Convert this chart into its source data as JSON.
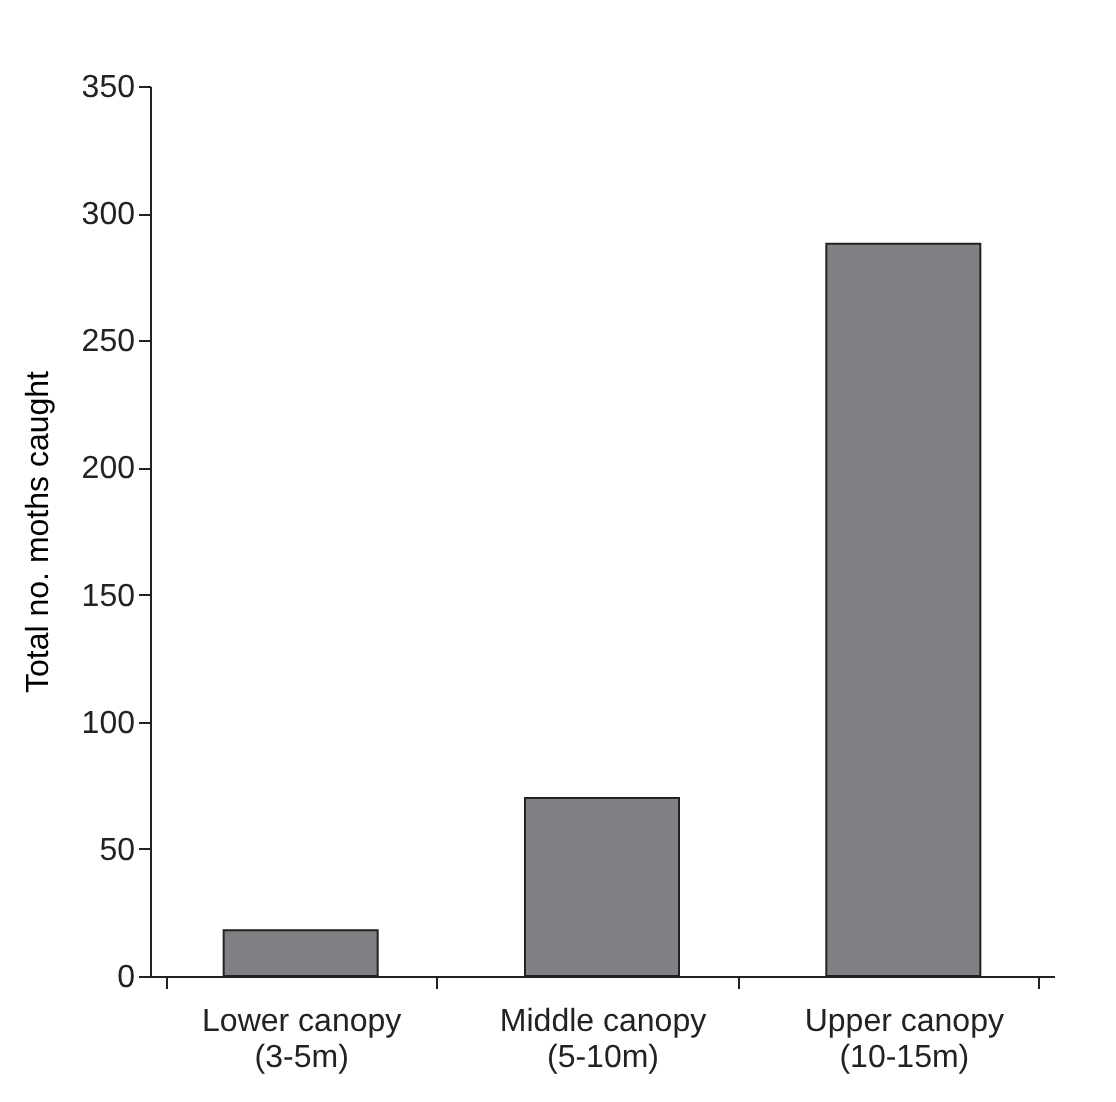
{
  "chart_data": {
    "type": "bar",
    "ylabel": "Total no. moths caught",
    "categories": [
      "Lower canopy\n(3-5m)",
      "Middle canopy\n(5-10m)",
      "Upper canopy\n(10-15m)"
    ],
    "values": [
      18,
      70,
      288
    ],
    "color": "#808184",
    "ylim": [
      0,
      350
    ],
    "yticks": [
      0,
      50,
      100,
      150,
      200,
      250,
      300,
      350
    ],
    "grid": false
  }
}
